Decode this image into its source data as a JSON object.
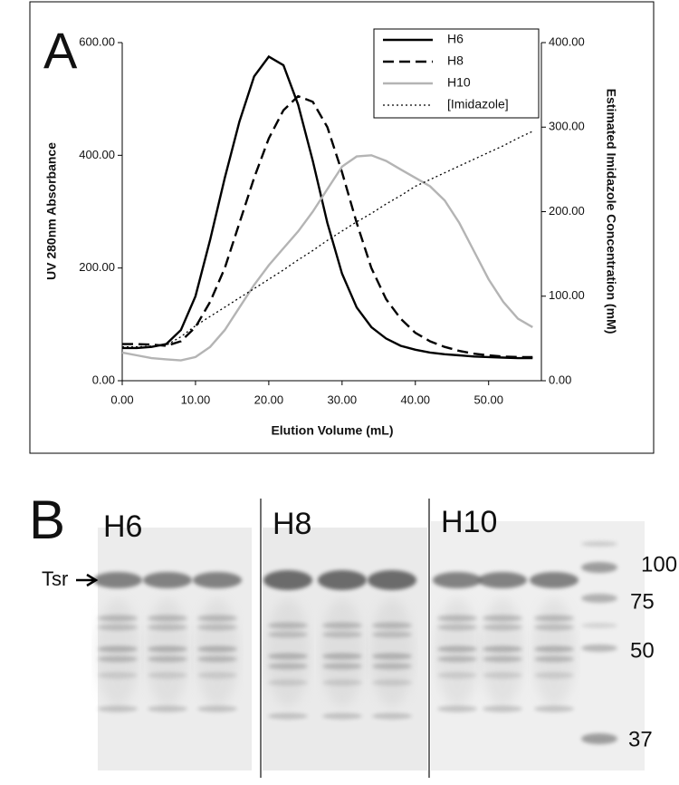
{
  "chart_data": {
    "type": "line",
    "panel_label": "A",
    "x_label": "Elution Volume (mL)",
    "y_label": "UV 280nm Absorbance",
    "y2_label": "Estimated Imidazole Concentration (mM)",
    "x": [
      0,
      2,
      4,
      6,
      8,
      10,
      12,
      14,
      16,
      18,
      20,
      22,
      24,
      26,
      28,
      30,
      32,
      34,
      36,
      38,
      40,
      42,
      44,
      46,
      48,
      50,
      52,
      54,
      56
    ],
    "xlim": [
      0,
      57.2
    ],
    "xticks": [
      {
        "value": 0,
        "label": "0.00"
      },
      {
        "value": 10,
        "label": "10.00"
      },
      {
        "value": 20,
        "label": "20.00"
      },
      {
        "value": 30,
        "label": "30.00"
      },
      {
        "value": 40,
        "label": "40.00"
      },
      {
        "value": 50,
        "label": "50.00"
      }
    ],
    "ylim": [
      0,
      600
    ],
    "yticks": [
      {
        "value": 0,
        "label": "0.00"
      },
      {
        "value": 200,
        "label": "200.00"
      },
      {
        "value": 400,
        "label": "400.00"
      },
      {
        "value": 600,
        "label": "600.00"
      }
    ],
    "y2lim": [
      0,
      400
    ],
    "y2ticks": [
      {
        "value": 0,
        "label": "0.00"
      },
      {
        "value": 100,
        "label": "100.00"
      },
      {
        "value": 200,
        "label": "200.00"
      },
      {
        "value": 300,
        "label": "300.00"
      },
      {
        "value": 400,
        "label": "400.00"
      }
    ],
    "legend": "top-right",
    "series": [
      {
        "name": "H6",
        "color": "#000000",
        "dash": "solid",
        "values": [
          58,
          58,
          60,
          65,
          90,
          150,
          250,
          360,
          460,
          540,
          575,
          560,
          490,
          390,
          280,
          190,
          130,
          95,
          75,
          62,
          55,
          50,
          47,
          45,
          43,
          42,
          41,
          40,
          40
        ]
      },
      {
        "name": "H8",
        "color": "#000000",
        "dash": "dashed",
        "values": [
          65,
          65,
          64,
          62,
          70,
          95,
          140,
          200,
          280,
          360,
          430,
          480,
          505,
          495,
          450,
          370,
          280,
          200,
          145,
          110,
          85,
          70,
          60,
          53,
          48,
          45,
          43,
          42,
          42
        ]
      },
      {
        "name": "H10",
        "color": "#b4b4b4",
        "dash": "solid",
        "values": [
          50,
          45,
          40,
          38,
          36,
          42,
          60,
          90,
          130,
          170,
          205,
          235,
          265,
          300,
          340,
          380,
          398,
          400,
          390,
          375,
          360,
          345,
          320,
          280,
          230,
          180,
          140,
          110,
          95
        ]
      },
      {
        "name": "[Imidazole]",
        "color": "#000000",
        "dash": "dotted",
        "axis": "y2",
        "values": [
          40,
          40,
          41,
          42,
          52,
          65,
          76,
          87,
          98,
          109,
          120,
          131,
          143,
          154,
          166,
          177,
          188,
          198,
          209,
          219,
          230,
          238,
          246,
          254,
          262,
          270,
          278,
          287,
          295
        ]
      }
    ]
  },
  "gel": {
    "panel_label": "B",
    "lanes": [
      "H6",
      "H8",
      "H10"
    ],
    "band_label": "Tsr",
    "markers": [
      "100",
      "75",
      "50",
      "37"
    ]
  }
}
